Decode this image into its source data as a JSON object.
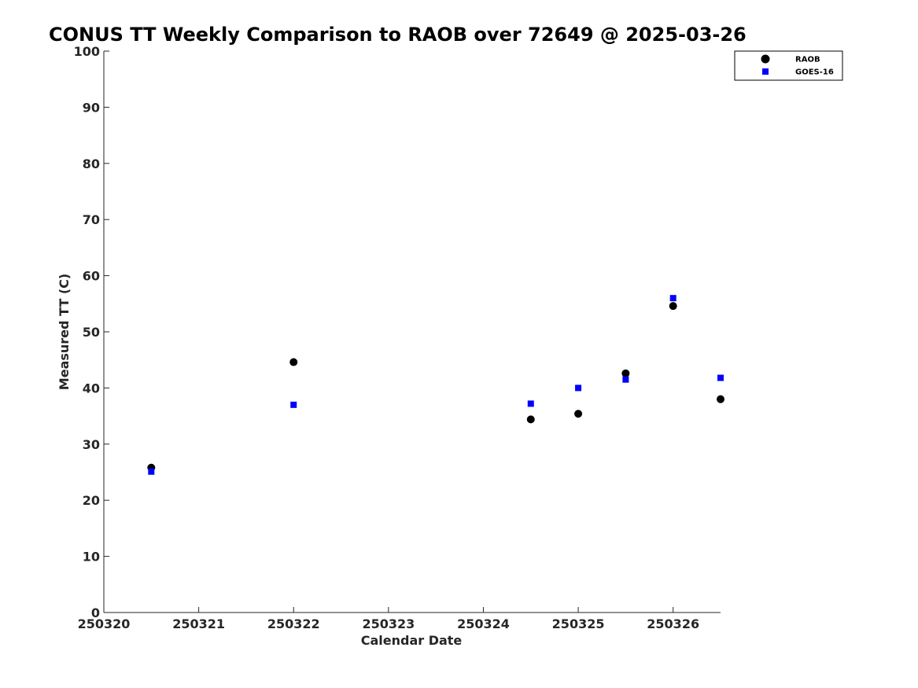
{
  "chart_data": {
    "type": "scatter",
    "title": "CONUS TT Weekly Comparison to RAOB over 72649 @ 2025-03-26",
    "xlabel": "Calendar Date",
    "ylabel": "Measured TT (C)",
    "xlim": [
      250320,
      250326.5
    ],
    "ylim": [
      0,
      100
    ],
    "x_ticks": [
      250320,
      250321,
      250322,
      250323,
      250324,
      250325,
      250326
    ],
    "x_tick_labels": [
      "250320",
      "250321",
      "250322",
      "250323",
      "250324",
      "250325",
      "250326"
    ],
    "y_ticks": [
      0,
      10,
      20,
      30,
      40,
      50,
      60,
      70,
      80,
      90,
      100
    ],
    "y_tick_labels": [
      "0",
      "10",
      "20",
      "30",
      "40",
      "50",
      "60",
      "70",
      "80",
      "90",
      "100"
    ],
    "grid": false,
    "legend_position": "top-right",
    "series": [
      {
        "name": "RAOB",
        "marker": "circle",
        "color": "#000000",
        "points": [
          {
            "x": 250320.5,
            "y": 25.8
          },
          {
            "x": 250322.0,
            "y": 44.6
          },
          {
            "x": 250324.5,
            "y": 34.4
          },
          {
            "x": 250325.0,
            "y": 35.4
          },
          {
            "x": 250325.5,
            "y": 42.6
          },
          {
            "x": 250326.0,
            "y": 54.6
          },
          {
            "x": 250326.5,
            "y": 38.0
          }
        ]
      },
      {
        "name": "GOES-16",
        "marker": "square",
        "color": "#0000ff",
        "points": [
          {
            "x": 250320.5,
            "y": 25.1
          },
          {
            "x": 250322.0,
            "y": 37.0
          },
          {
            "x": 250324.5,
            "y": 37.2
          },
          {
            "x": 250325.0,
            "y": 40.0
          },
          {
            "x": 250325.5,
            "y": 41.5
          },
          {
            "x": 250326.0,
            "y": 56.0
          },
          {
            "x": 250326.5,
            "y": 41.8
          }
        ]
      }
    ]
  }
}
